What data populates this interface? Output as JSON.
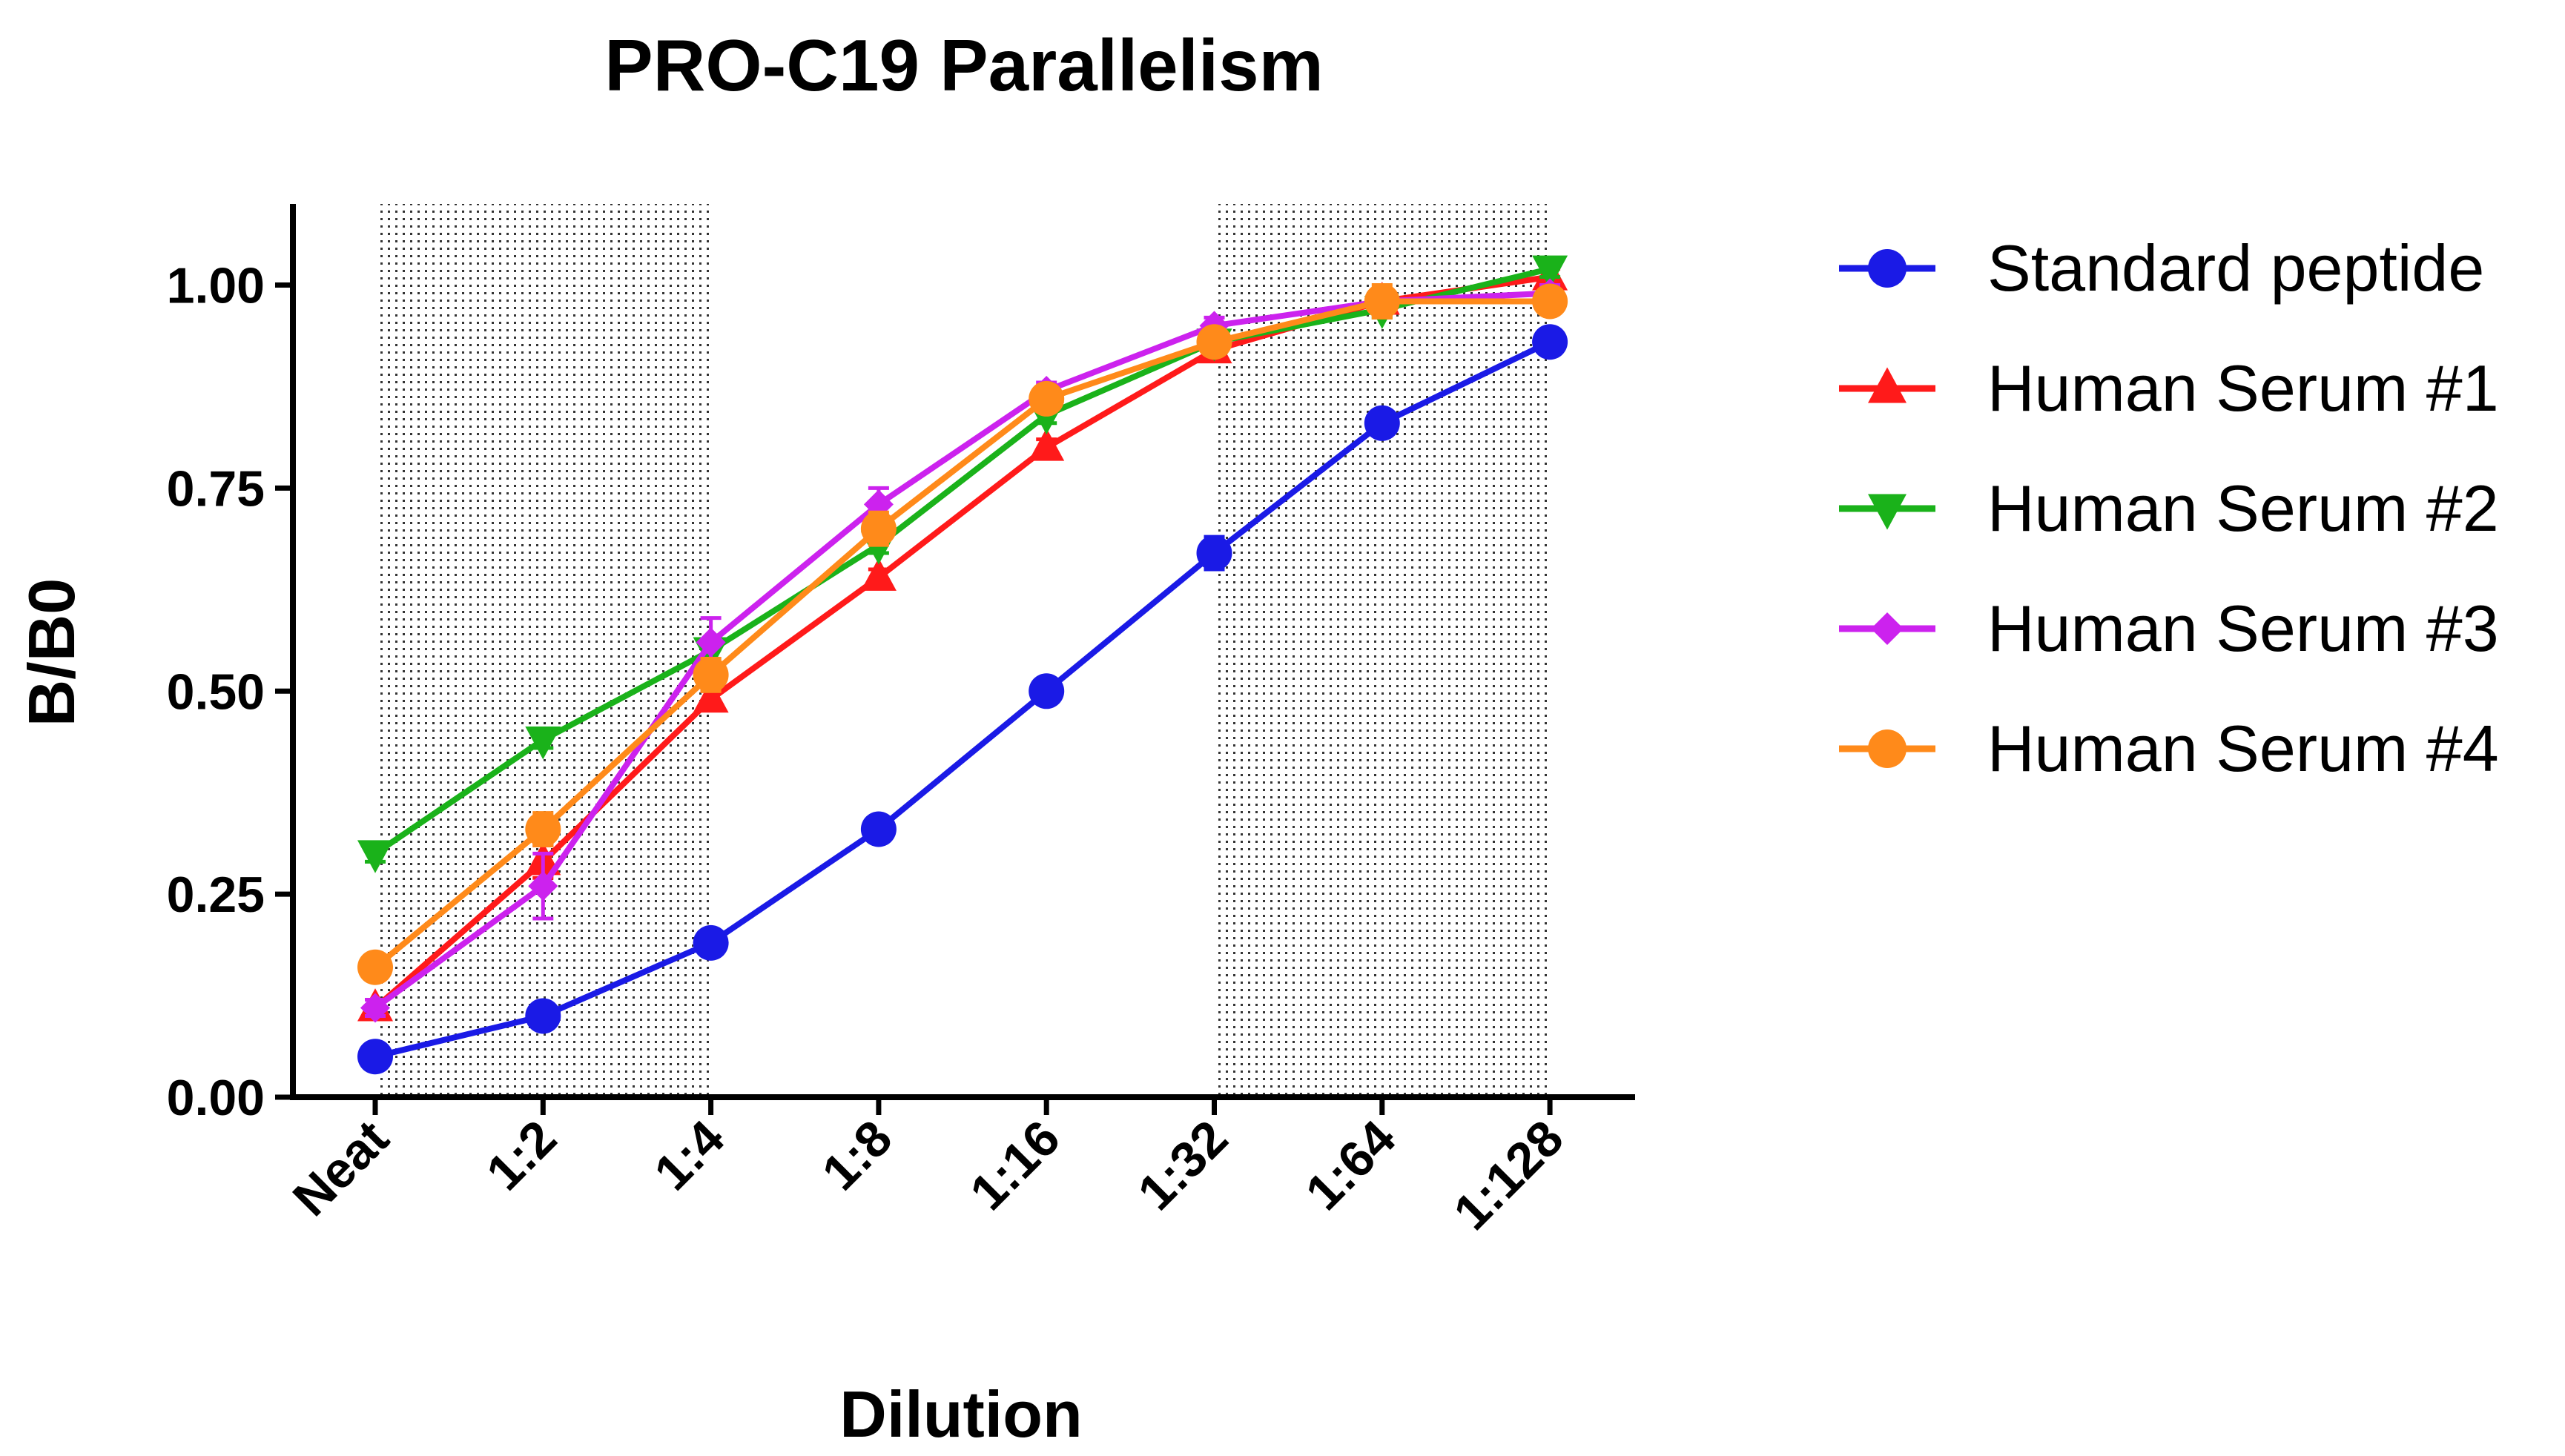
{
  "chart_data": {
    "type": "line",
    "title": "PRO-C19 Parallelism",
    "xlabel": "Dilution",
    "ylabel": "B/B0",
    "categories": [
      "Neat",
      "1:2",
      "1:4",
      "1:8",
      "1:16",
      "1:32",
      "1:64",
      "1:128"
    ],
    "ylim": [
      0,
      1.1
    ],
    "yticks": [
      0,
      0.25,
      0.5,
      0.75,
      1.0
    ],
    "ytick_labels": [
      "0.00",
      "0.25",
      "0.50",
      "0.75",
      "1.00"
    ],
    "shaded_ranges": [
      [
        0,
        2
      ],
      [
        5,
        7
      ]
    ],
    "legend_position": "right",
    "series": [
      {
        "name": "Standard peptide",
        "color": "#1a1ae6",
        "marker": "circle",
        "values": [
          0.05,
          0.1,
          0.19,
          0.33,
          0.5,
          0.67,
          0.83,
          0.93
        ],
        "errors": [
          0.01,
          0.01,
          0.01,
          0.01,
          0.01,
          0.02,
          0.01,
          0.01
        ]
      },
      {
        "name": "Human Serum #1",
        "color": "#ff1a1a",
        "marker": "triangle-up",
        "values": [
          0.11,
          0.29,
          0.49,
          0.64,
          0.8,
          0.92,
          0.98,
          1.01
        ],
        "errors": [
          0.01,
          0.02,
          0.01,
          0.01,
          0.01,
          0.01,
          0.01,
          0.01
        ]
      },
      {
        "name": "Human Serum #2",
        "color": "#1ab21a",
        "marker": "triangle-down",
        "values": [
          0.3,
          0.44,
          0.55,
          0.68,
          0.84,
          0.93,
          0.97,
          1.02
        ],
        "errors": [
          0.01,
          0.01,
          0.01,
          0.01,
          0.01,
          0.01,
          0.01,
          0.01
        ]
      },
      {
        "name": "Human Serum #3",
        "color": "#cc22ee",
        "marker": "diamond",
        "values": [
          0.11,
          0.26,
          0.56,
          0.73,
          0.87,
          0.95,
          0.98,
          0.99
        ],
        "errors": [
          0.01,
          0.04,
          0.03,
          0.02,
          0.01,
          0.01,
          0.01,
          0.01
        ]
      },
      {
        "name": "Human Serum #4",
        "color": "#ff8a1a",
        "marker": "circle",
        "values": [
          0.16,
          0.33,
          0.52,
          0.7,
          0.86,
          0.93,
          0.98,
          0.98
        ],
        "errors": [
          0.01,
          0.02,
          0.02,
          0.02,
          0.01,
          0.01,
          0.02,
          0.01
        ]
      }
    ]
  }
}
